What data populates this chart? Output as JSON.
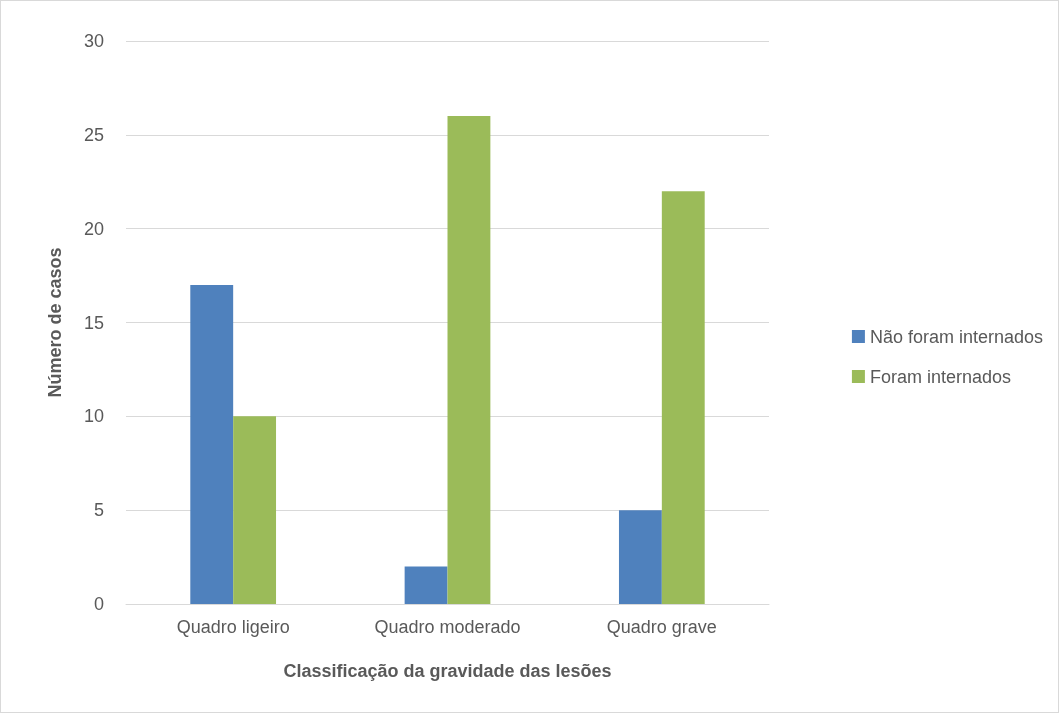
{
  "chart_data": {
    "type": "bar",
    "xlabel": "Classificação da gravidade das lesões",
    "ylabel": "Número de casos",
    "categories": [
      "Quadro ligeiro",
      "Quadro moderado",
      "Quadro grave"
    ],
    "series": [
      {
        "name": "Não foram internados",
        "color": "#4f81bd",
        "values": [
          17,
          2,
          5
        ]
      },
      {
        "name": "Foram internados",
        "color": "#9bbb59",
        "values": [
          10,
          26,
          22
        ]
      }
    ],
    "ylim": [
      0,
      30
    ],
    "yticks": [
      0,
      5,
      10,
      15,
      20,
      25,
      30
    ],
    "grid": "y",
    "legend": "right"
  }
}
